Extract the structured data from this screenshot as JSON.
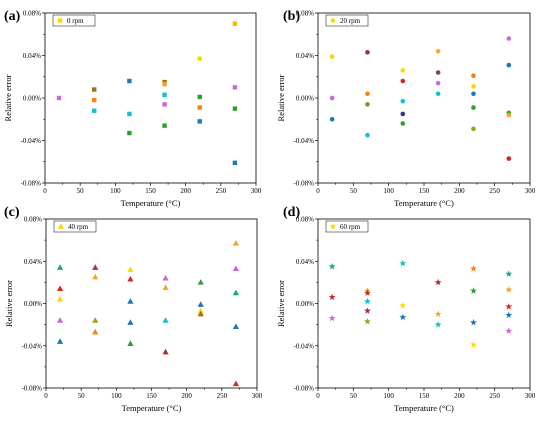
{
  "chart_data": [
    {
      "type": "scatter",
      "panel_label": "(a)",
      "legend": "0 rpm",
      "legend_placement": "top-left",
      "marker": "square",
      "xlabel": "Temperature (°C)",
      "ylabel": "Relative error",
      "xlim": [
        0,
        300
      ],
      "ylim": [
        -0.0008,
        0.0008
      ],
      "xticks": [
        "0",
        "50",
        "100",
        "150",
        "200",
        "250",
        "300"
      ],
      "yticks": [
        "-0.08%",
        "-0.04%",
        "0.00%",
        "0.04%",
        "0.08%"
      ],
      "points": [
        {
          "x": 20,
          "y": 0.0,
          "color": "#cc66dd"
        },
        {
          "x": 70,
          "y": 8e-05,
          "color": "#a66a1e"
        },
        {
          "x": 70,
          "y": -2e-05,
          "color": "#ff7f0e"
        },
        {
          "x": 70,
          "y": -0.00012,
          "color": "#17becf"
        },
        {
          "x": 120,
          "y": 0.00016,
          "color": "#1f77b4"
        },
        {
          "x": 120,
          "y": -0.00015,
          "color": "#17becf"
        },
        {
          "x": 120,
          "y": -0.00033,
          "color": "#2ca02c"
        },
        {
          "x": 170,
          "y": 0.00015,
          "color": "#a66a1e"
        },
        {
          "x": 170,
          "y": 0.00013,
          "color": "#f5a623"
        },
        {
          "x": 170,
          "y": 3e-05,
          "color": "#17becf"
        },
        {
          "x": 170,
          "y": -6e-05,
          "color": "#cc66dd"
        },
        {
          "x": 170,
          "y": -0.00026,
          "color": "#2ca02c"
        },
        {
          "x": 220,
          "y": 0.00037,
          "color": "#ffd700"
        },
        {
          "x": 220,
          "y": 1e-05,
          "color": "#2ca02c"
        },
        {
          "x": 220,
          "y": -9e-05,
          "color": "#ff7f0e"
        },
        {
          "x": 220,
          "y": -0.00022,
          "color": "#1f77b4"
        },
        {
          "x": 270,
          "y": 0.0007,
          "color": "#f5b800"
        },
        {
          "x": 270,
          "y": 0.0001,
          "color": "#cc66dd"
        },
        {
          "x": 270,
          "y": -0.0001,
          "color": "#2ca02c"
        },
        {
          "x": 270,
          "y": -0.00061,
          "color": "#1f77b4"
        }
      ]
    },
    {
      "type": "scatter",
      "panel_label": "(b)",
      "legend": "20 rpm",
      "legend_placement": "top-left",
      "marker": "circle",
      "xlabel": "Temperature (°C)",
      "ylabel": "Relative error",
      "xlim": [
        0,
        300
      ],
      "ylim": [
        -0.0008,
        0.0008
      ],
      "xticks": [
        "0",
        "50",
        "100",
        "150",
        "200",
        "250",
        "300"
      ],
      "yticks": [
        "-0.08%",
        "-0.04%",
        "0.00%",
        "0.04%",
        "0.08%"
      ],
      "points": [
        {
          "x": 20,
          "y": 0.00039,
          "color": "#ffd700"
        },
        {
          "x": 20,
          "y": 0.0,
          "color": "#cc66dd"
        },
        {
          "x": 20,
          "y": -0.0002,
          "color": "#1f77b4"
        },
        {
          "x": 70,
          "y": 0.00043,
          "color": "#a83232"
        },
        {
          "x": 70,
          "y": 4e-05,
          "color": "#ff7f0e"
        },
        {
          "x": 70,
          "y": -6e-05,
          "color": "#8c8c1e"
        },
        {
          "x": 70,
          "y": -0.00035,
          "color": "#17becf"
        },
        {
          "x": 120,
          "y": 0.00026,
          "color": "#ffd700"
        },
        {
          "x": 120,
          "y": 0.00016,
          "color": "#d62728"
        },
        {
          "x": 120,
          "y": -3e-05,
          "color": "#17becf"
        },
        {
          "x": 120,
          "y": -0.00015,
          "color": "#1f3f8f"
        },
        {
          "x": 120,
          "y": -0.00024,
          "color": "#2ca02c"
        },
        {
          "x": 170,
          "y": 0.00044,
          "color": "#f5a623"
        },
        {
          "x": 170,
          "y": 0.00024,
          "color": "#8b3a62"
        },
        {
          "x": 170,
          "y": 0.00014,
          "color": "#cc66dd"
        },
        {
          "x": 170,
          "y": 4e-05,
          "color": "#17becf"
        },
        {
          "x": 220,
          "y": 0.00021,
          "color": "#ff7f0e"
        },
        {
          "x": 220,
          "y": 0.00011,
          "color": "#ffd700"
        },
        {
          "x": 220,
          "y": 4e-05,
          "color": "#1f77b4"
        },
        {
          "x": 220,
          "y": -9e-05,
          "color": "#2ca02c"
        },
        {
          "x": 220,
          "y": -0.00029,
          "color": "#a0a020"
        },
        {
          "x": 270,
          "y": 0.00056,
          "color": "#cc66dd"
        },
        {
          "x": 270,
          "y": 0.00031,
          "color": "#1f77b4"
        },
        {
          "x": 270,
          "y": -0.00014,
          "color": "#2ca02c"
        },
        {
          "x": 270,
          "y": -0.00016,
          "color": "#f5a623"
        },
        {
          "x": 270,
          "y": -0.00057,
          "color": "#d62728"
        }
      ]
    },
    {
      "type": "scatter",
      "panel_label": "(c)",
      "legend": "40 rpm",
      "legend_placement": "top-left",
      "marker": "triangle",
      "xlabel": "Temperature (°C)",
      "ylabel": "Relative error",
      "xlim": [
        0,
        300
      ],
      "ylim": [
        -0.0008,
        0.0008
      ],
      "xticks": [
        "0",
        "50",
        "100",
        "150",
        "200",
        "250",
        "300"
      ],
      "yticks": [
        "-0.08%",
        "-0.04%",
        "0.00%",
        "0.04%",
        "0.08%"
      ],
      "points": [
        {
          "x": 20,
          "y": 0.00034,
          "color": "#17a589"
        },
        {
          "x": 20,
          "y": 0.00014,
          "color": "#d62728"
        },
        {
          "x": 20,
          "y": 4e-05,
          "color": "#ffd700"
        },
        {
          "x": 20,
          "y": -0.00016,
          "color": "#cc66dd"
        },
        {
          "x": 20,
          "y": -0.00036,
          "color": "#1f77b4"
        },
        {
          "x": 70,
          "y": 0.00034,
          "color": "#a83232"
        },
        {
          "x": 70,
          "y": 0.00025,
          "color": "#f5a623"
        },
        {
          "x": 70,
          "y": -0.00016,
          "color": "#a0a020"
        },
        {
          "x": 70,
          "y": -0.00027,
          "color": "#ff7f0e"
        },
        {
          "x": 120,
          "y": 0.00032,
          "color": "#ffd700"
        },
        {
          "x": 120,
          "y": 0.00023,
          "color": "#d62728"
        },
        {
          "x": 120,
          "y": 2e-05,
          "color": "#1f77b4"
        },
        {
          "x": 120,
          "y": -0.00018,
          "color": "#1f77b4"
        },
        {
          "x": 120,
          "y": -0.00038,
          "color": "#2ca02c"
        },
        {
          "x": 170,
          "y": 0.00024,
          "color": "#cc66dd"
        },
        {
          "x": 170,
          "y": 0.00015,
          "color": "#f5a623"
        },
        {
          "x": 170,
          "y": -0.00016,
          "color": "#17becf"
        },
        {
          "x": 170,
          "y": -0.00046,
          "color": "#a83232"
        },
        {
          "x": 220,
          "y": 0.0002,
          "color": "#2ca02c"
        },
        {
          "x": 220,
          "y": -1e-05,
          "color": "#1f77b4"
        },
        {
          "x": 220,
          "y": -7e-05,
          "color": "#ffd700"
        },
        {
          "x": 220,
          "y": -0.0001,
          "color": "#a66a1e"
        },
        {
          "x": 270,
          "y": 0.00057,
          "color": "#f5a623"
        },
        {
          "x": 270,
          "y": 0.00033,
          "color": "#cc66dd"
        },
        {
          "x": 270,
          "y": 0.0001,
          "color": "#17a589"
        },
        {
          "x": 270,
          "y": -0.00022,
          "color": "#1f77b4"
        },
        {
          "x": 270,
          "y": -0.00076,
          "color": "#d62728"
        }
      ]
    },
    {
      "type": "scatter",
      "panel_label": "(d)",
      "legend": "60 rpm",
      "legend_placement": "top-left",
      "marker": "star",
      "xlabel": "Temperature (°C)",
      "ylabel": "Relative error",
      "xlim": [
        0,
        300
      ],
      "ylim": [
        -0.0008,
        0.0008
      ],
      "xticks": [
        "0",
        "50",
        "100",
        "150",
        "200",
        "250",
        "300"
      ],
      "yticks": [
        "-0.08%",
        "-0.04%",
        "0.00%",
        "0.04%",
        "0.08%"
      ],
      "points": [
        {
          "x": 20,
          "y": 0.00035,
          "color": "#17a589"
        },
        {
          "x": 20,
          "y": 6e-05,
          "color": "#d62728"
        },
        {
          "x": 20,
          "y": -0.00014,
          "color": "#cc66dd"
        },
        {
          "x": 70,
          "y": 0.00012,
          "color": "#f5a623"
        },
        {
          "x": 70,
          "y": 0.0001,
          "color": "#d62728"
        },
        {
          "x": 70,
          "y": 2e-05,
          "color": "#17becf"
        },
        {
          "x": 70,
          "y": -7e-05,
          "color": "#a83232"
        },
        {
          "x": 70,
          "y": -0.00017,
          "color": "#a0a020"
        },
        {
          "x": 120,
          "y": 0.00038,
          "color": "#17becf"
        },
        {
          "x": 120,
          "y": -2e-05,
          "color": "#ffd700"
        },
        {
          "x": 120,
          "y": -0.00013,
          "color": "#1f77b4"
        },
        {
          "x": 170,
          "y": 0.0002,
          "color": "#a83232"
        },
        {
          "x": 170,
          "y": -0.0001,
          "color": "#f5a623"
        },
        {
          "x": 170,
          "y": -0.0002,
          "color": "#17becf"
        },
        {
          "x": 220,
          "y": 0.00033,
          "color": "#ff7f0e"
        },
        {
          "x": 220,
          "y": 0.00012,
          "color": "#2ca02c"
        },
        {
          "x": 220,
          "y": -0.00018,
          "color": "#1f77b4"
        },
        {
          "x": 220,
          "y": -0.00039,
          "color": "#ffd700"
        },
        {
          "x": 270,
          "y": 0.00028,
          "color": "#17a589"
        },
        {
          "x": 270,
          "y": 0.00013,
          "color": "#f5a623"
        },
        {
          "x": 270,
          "y": -3e-05,
          "color": "#d62728"
        },
        {
          "x": 270,
          "y": -0.00011,
          "color": "#1f77b4"
        },
        {
          "x": 270,
          "y": -0.00026,
          "color": "#cc66dd"
        }
      ]
    }
  ]
}
